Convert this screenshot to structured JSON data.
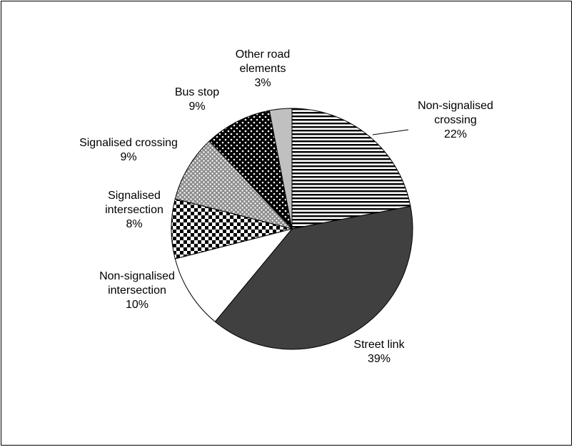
{
  "chart_data": {
    "type": "pie",
    "title": "",
    "legend": "none",
    "slices": [
      {
        "name": "Non-signalised crossing",
        "label_lines": [
          "Non-signalised",
          "crossing",
          "22%"
        ],
        "value": 22,
        "value_label": "22%",
        "fill": "horizontal-stripes"
      },
      {
        "name": "Street link",
        "label_lines": [
          "Street link",
          "39%"
        ],
        "value": 39,
        "value_label": "39%",
        "fill": "#404040"
      },
      {
        "name": "Non-signalised intersection",
        "label_lines": [
          "Non-signalised",
          "intersection",
          "10%"
        ],
        "value": 10,
        "value_label": "10%",
        "fill": "#ffffff"
      },
      {
        "name": "Signalised intersection",
        "label_lines": [
          "Signalised",
          "intersection",
          "8%"
        ],
        "value": 8,
        "value_label": "8%",
        "fill": "checkerboard"
      },
      {
        "name": "Signalised crossing",
        "label_lines": [
          "Signalised crossing",
          "9%"
        ],
        "value": 9,
        "value_label": "9%",
        "fill": "light-dots"
      },
      {
        "name": "Bus stop",
        "label_lines": [
          "Bus stop",
          "9%"
        ],
        "value": 9,
        "value_label": "9%",
        "fill": "dark-dots"
      },
      {
        "name": "Other road elements",
        "label_lines": [
          "Other road",
          "elements",
          "3%"
        ],
        "value": 3,
        "value_label": "3%",
        "fill": "#c0c0c0"
      }
    ]
  }
}
